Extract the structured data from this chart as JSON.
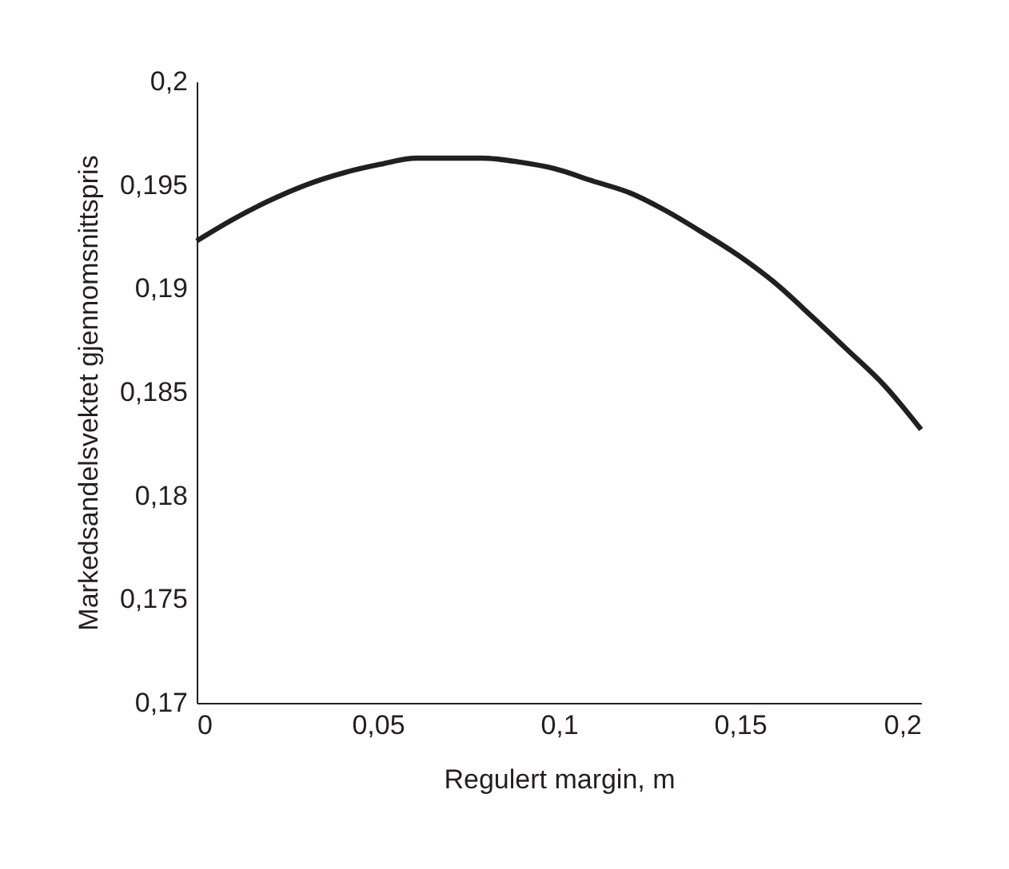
{
  "chart_data": {
    "type": "line",
    "xlabel": "Regulert margin, m",
    "ylabel": "Markedsandelsvektet gjennomsnittspris",
    "x": [
      0,
      0.0096,
      0.0195,
      0.0301,
      0.0408,
      0.0507,
      0.0606,
      0.0697,
      0.0788,
      0.0895,
      0.0986,
      0.1093,
      0.1199,
      0.1291,
      0.1397,
      0.1504,
      0.1595,
      0.1702,
      0.1793,
      0.19,
      0.2
    ],
    "series": [
      {
        "color": "#231f20",
        "values": [
          0.1923,
          0.1933,
          0.1942,
          0.195,
          0.1956,
          0.196,
          0.1963,
          0.1963,
          0.1963,
          0.1961,
          0.1958,
          0.1952,
          0.1946,
          0.1938,
          0.1927,
          0.1915,
          0.1903,
          0.1886,
          0.1871,
          0.1853,
          0.1832
        ]
      }
    ],
    "xlim": [
      0,
      0.2
    ],
    "ylim": [
      0.17,
      0.2
    ],
    "xticks": [
      0,
      {
        "value": 0.05,
        "label": "0,05"
      },
      {
        "value": 0.1,
        "label": "0,1"
      },
      {
        "value": 0.15,
        "label": "0,15"
      },
      {
        "value": 0.2,
        "label": "0,2"
      }
    ],
    "yticks": [
      {
        "value": 0.17,
        "label": "0,17"
      },
      {
        "value": 0.175,
        "label": "0,175"
      },
      {
        "value": 0.18,
        "label": "0,18"
      },
      {
        "value": 0.185,
        "label": "0,185"
      },
      {
        "value": 0.19,
        "label": "0,19"
      },
      {
        "value": 0.195,
        "label": "0,195"
      },
      {
        "value": 0.2,
        "label": "0,2"
      }
    ],
    "grid": false,
    "legend": false,
    "marker": "none",
    "line_style": "solid"
  }
}
